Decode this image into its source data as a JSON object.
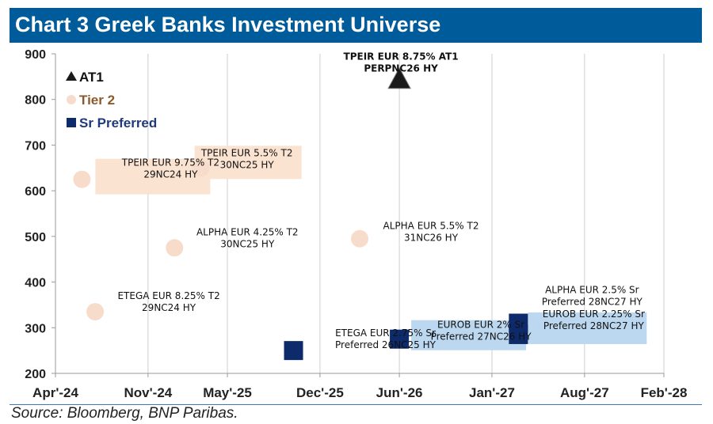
{
  "title": "Chart 3 Greek Banks Investment Universe",
  "source": "Source: Bloomberg, BNP Paribas.",
  "colors": {
    "title_bg": "#005b9a",
    "at1": "#1a1a1a",
    "tier2": "#f7dccb",
    "tier2_label_bg": "#fbe3d2",
    "sr_preferred": "#0d2a6b",
    "sr_label_bg": "#bcd8f0",
    "tier2_legend_text": "#8b5a2b",
    "sr_legend_text": "#1f3a7a"
  },
  "chart_data": {
    "type": "scatter",
    "ylim": [
      200,
      900
    ],
    "yticks": [
      "900",
      "800",
      "700",
      "600",
      "500",
      "400",
      "300",
      "200"
    ],
    "xticks": [
      "Apr'-24",
      "Nov'-24",
      "May'-25",
      "Dec'-25",
      "Jun'-26",
      "Jan'-27",
      "Aug'-27",
      "Feb'-28"
    ],
    "legend": [
      {
        "name": "AT1",
        "marker": "triangle"
      },
      {
        "name": "Tier 2",
        "marker": "circle"
      },
      {
        "name": "Sr Preferred",
        "marker": "square"
      }
    ],
    "series": [
      {
        "name": "AT1",
        "marker": "triangle",
        "points": [
          {
            "x": "Jun'-26",
            "y": 845,
            "label": [
              "TPEIR EUR 8.75%  AT1",
              "PERPNC26 HY"
            ]
          }
        ]
      },
      {
        "name": "Tier 2",
        "marker": "circle",
        "points": [
          {
            "x": "Jun'-24",
            "y": 625,
            "label": [
              "TPEIR EUR 9.75%  T2",
              "29NC24 HY"
            ]
          },
          {
            "x": "Jan'-25",
            "y": 475,
            "label": [
              "ALPHA EUR 4.25%  T2",
              "30NC25 HY"
            ]
          },
          {
            "x": "Mar'-26",
            "y": 495,
            "label": [
              "ALPHA EUR 5.5%  T2",
              "31NC26 HY"
            ]
          },
          {
            "x": "Jul'-24",
            "y": 335,
            "label": [
              "ETEGA EUR 8.25%  T2",
              "29NC24 HY"
            ]
          },
          {
            "x": "Mar'-25",
            "y": 650,
            "label": [
              "TPEIR EUR 5.5%  T2",
              "30NC25 HY"
            ]
          }
        ]
      },
      {
        "name": "Sr Preferred",
        "marker": "square",
        "points": [
          {
            "x": "Oct'-25",
            "y": 250,
            "label": [
              "ETEGA EUR 2.75%  Sr",
              "Preferred 26NC25 HY"
            ]
          },
          {
            "x": "Jun'-26",
            "y": 275,
            "label": [
              "EUROB EUR 2%  Sr",
              "Preferred 27NC26 HY"
            ]
          },
          {
            "x": "Mar'-27",
            "y": 310,
            "label": [
              "ALPHA EUR 2.5%  Sr",
              "Preferred 28NC27 HY"
            ]
          },
          {
            "x": "Mar'-27",
            "y": 285,
            "label": [
              "EUROB EUR 2.25%  Sr",
              "Preferred 28NC27 HY"
            ]
          }
        ]
      }
    ]
  }
}
